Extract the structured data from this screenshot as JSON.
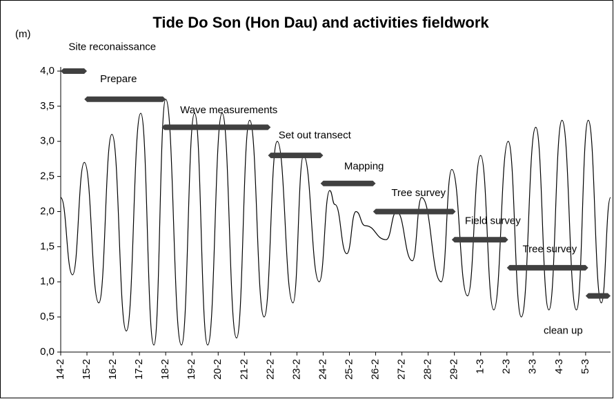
{
  "chart_data": {
    "type": "line",
    "title": "Tide Do Son (Hon Dau) and activities fieldwork",
    "y_label": "(m)",
    "color": "#000000",
    "x": [
      0,
      0.45,
      0.9,
      1.45,
      1.95,
      2.5,
      3.05,
      3.55,
      4.0,
      4.6,
      5.1,
      5.6,
      6.15,
      6.7,
      7.2,
      7.75,
      8.25,
      8.85,
      9.25,
      9.85,
      10.25,
      10.45,
      10.9,
      11.25,
      11.6,
      12.4,
      12.8,
      13.4,
      13.75,
      14.5,
      14.9,
      15.5,
      16.0,
      16.5,
      17.05,
      17.55,
      18.1,
      18.6,
      19.1,
      19.65,
      20.1,
      20.6,
      20.95
    ],
    "values": [
      2.2,
      1.1,
      2.7,
      0.7,
      3.1,
      0.3,
      3.4,
      0.1,
      3.6,
      0.1,
      3.4,
      0.1,
      3.4,
      0.2,
      3.3,
      0.5,
      3.0,
      0.7,
      2.8,
      1.0,
      2.3,
      2.1,
      1.4,
      2.0,
      1.8,
      1.6,
      2.0,
      1.3,
      2.2,
      1.0,
      2.6,
      0.8,
      2.8,
      0.6,
      3.0,
      0.5,
      3.2,
      0.6,
      3.3,
      0.6,
      3.3,
      0.7,
      2.2
    ],
    "xlim": [
      0,
      20.95
    ],
    "xticks": [
      {
        "value": 0,
        "label": "14-2"
      },
      {
        "value": 1,
        "label": "15-2"
      },
      {
        "value": 2,
        "label": "16-2"
      },
      {
        "value": 3,
        "label": "17-2"
      },
      {
        "value": 4,
        "label": "18-2"
      },
      {
        "value": 5,
        "label": "19-2"
      },
      {
        "value": 6,
        "label": "20-2"
      },
      {
        "value": 7,
        "label": "21-2"
      },
      {
        "value": 8,
        "label": "22-2"
      },
      {
        "value": 9,
        "label": "23-2"
      },
      {
        "value": 10,
        "label": "24-2"
      },
      {
        "value": 11,
        "label": "25-2"
      },
      {
        "value": 12,
        "label": "26-2"
      },
      {
        "value": 13,
        "label": "27-2"
      },
      {
        "value": 14,
        "label": "28-2"
      },
      {
        "value": 15,
        "label": "29-2"
      },
      {
        "value": 16,
        "label": "1-3"
      },
      {
        "value": 17,
        "label": "2-3"
      },
      {
        "value": 18,
        "label": "3-3"
      },
      {
        "value": 19,
        "label": "4-3"
      },
      {
        "value": 20,
        "label": "5-3"
      }
    ],
    "ylim": [
      0,
      4
    ],
    "yticks": [
      {
        "value": 0,
        "label": "0,0"
      },
      {
        "value": 0.5,
        "label": "0,5"
      },
      {
        "value": 1,
        "label": "1,0"
      },
      {
        "value": 1.5,
        "label": "1,5"
      },
      {
        "value": 2,
        "label": "2,0"
      },
      {
        "value": 2.5,
        "label": "2,5"
      },
      {
        "value": 3,
        "label": "3,0"
      },
      {
        "value": 3.5,
        "label": "3,5"
      },
      {
        "value": 4,
        "label": "4,0"
      }
    ],
    "activity_color": "#404040",
    "activities": [
      {
        "label": "Site reconaissance",
        "start": 0,
        "end": 1.0,
        "level": 4.0
      },
      {
        "label": "Prepare",
        "start": 0.9,
        "end": 4.0,
        "level": 3.6
      },
      {
        "label": "Wave measurements",
        "start": 3.85,
        "end": 8.0,
        "level": 3.2
      },
      {
        "label": "Set out transect",
        "start": 7.9,
        "end": 10.0,
        "level": 2.8
      },
      {
        "label": "Mapping",
        "start": 9.9,
        "end": 12.0,
        "level": 2.4
      },
      {
        "label": "Tree survey",
        "start": 11.9,
        "end": 15.05,
        "level": 2.0
      },
      {
        "label": "Field survey",
        "start": 14.9,
        "end": 17.05,
        "level": 1.6
      },
      {
        "label": "Tree survey",
        "start": 17.0,
        "end": 20.1,
        "level": 1.2
      },
      {
        "label": "clean up",
        "start": 20.0,
        "end": 20.95,
        "level": 0.8
      }
    ]
  }
}
